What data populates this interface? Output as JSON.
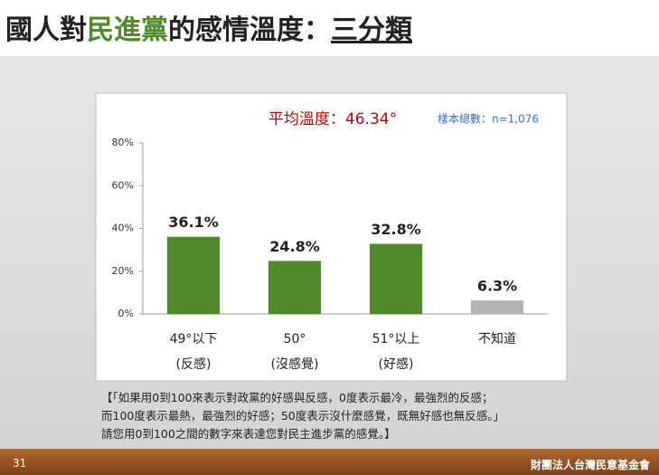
{
  "slide": {
    "title": [
      "國人對",
      "民進黨",
      "的感情溫度：",
      "三分類"
    ],
    "footnote": [
      "【「如果用0到100來表示對政黨的好感與反感，0度表示最冷，最強烈的反感；",
      "而100度表示最熱，最強烈的好感；50度表示沒什麼感覺，既無好感也無反感。」",
      "請您用0到100之間的數字來表達您對民主進步黨的感覺。】"
    ],
    "page_number": "31",
    "organization": "財團法人台灣民意基金會"
  },
  "chart_data": {
    "type": "bar",
    "annotations": [
      "平均溫度：46.34°",
      "樣本總數：n=1,076"
    ],
    "categories": [
      [
        "49°以下",
        "(反感)"
      ],
      [
        "50°",
        "(沒感覺)"
      ],
      [
        "51°以上",
        "(好感)"
      ],
      [
        "不知道"
      ]
    ],
    "values": [
      36.1,
      24.8,
      32.8,
      6.3
    ],
    "value_labels": [
      "36.1%",
      "24.8%",
      "32.8%",
      "6.3%"
    ],
    "colors": [
      "#4f8a2b",
      "#4f8a2b",
      "#4f8a2b",
      "#b3b3b3"
    ],
    "ylim": [
      0,
      80
    ],
    "yticks": [
      {
        "value": 0,
        "label": "0%"
      },
      {
        "value": 20,
        "label": "20%"
      },
      {
        "value": 40,
        "label": "40%"
      },
      {
        "value": 60,
        "label": "60%"
      },
      {
        "value": 80,
        "label": "80%"
      }
    ]
  }
}
